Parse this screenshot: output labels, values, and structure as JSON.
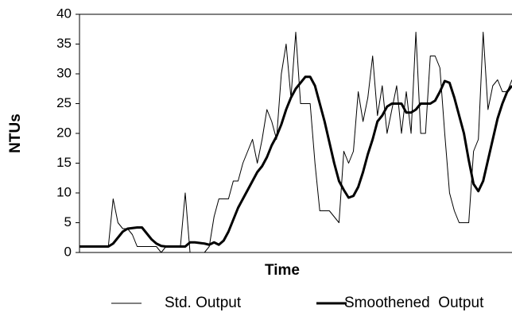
{
  "chart_data": {
    "type": "line",
    "x_label": "Time",
    "y_label": "NTUs",
    "categories": [
      null,
      null,
      null,
      null,
      null,
      null,
      null,
      null,
      null,
      null,
      null,
      null,
      null,
      null,
      null,
      null,
      null,
      null,
      null,
      null,
      null,
      null,
      null,
      null,
      null,
      null,
      null,
      null,
      null,
      null,
      null,
      null,
      null,
      null,
      null,
      null,
      null,
      null,
      null,
      null,
      null,
      null,
      null,
      null,
      null,
      null,
      null,
      null,
      null,
      null,
      null,
      null,
      null,
      null,
      null,
      null,
      null,
      null,
      null,
      null,
      null,
      null,
      null,
      null,
      null,
      null,
      null,
      null,
      null,
      null,
      null,
      null,
      null,
      null,
      null,
      null,
      null,
      null,
      null,
      null,
      null,
      null,
      null,
      null,
      null,
      null,
      null,
      null,
      null,
      null,
      null
    ],
    "series": [
      {
        "name": "Std. Output",
        "color": "#000000",
        "width": 1,
        "values": [
          1,
          1,
          1,
          1,
          1,
          1,
          1,
          9,
          5,
          4,
          4,
          3,
          1,
          1,
          1,
          1,
          1,
          0,
          1,
          1,
          1,
          1,
          10,
          0,
          0,
          0,
          0,
          1,
          6,
          9,
          9,
          9,
          12,
          12,
          15,
          17,
          19,
          15,
          19,
          24,
          22,
          19,
          30,
          35,
          26,
          37,
          25,
          25,
          25,
          15,
          7,
          7,
          7,
          6,
          5,
          17,
          15,
          17,
          27,
          22,
          26,
          33,
          23,
          28,
          20,
          24,
          28,
          20,
          27,
          20,
          37,
          20,
          20,
          33,
          33,
          31,
          20,
          10,
          7,
          5,
          5,
          5,
          17,
          19,
          37,
          24,
          28,
          29,
          27,
          27,
          29
        ]
      },
      {
        "name": "Smoothened  Output",
        "color": "#000000",
        "width": 3,
        "values": [
          1,
          1,
          1,
          1,
          1,
          1,
          1,
          1.5,
          2.5,
          3.5,
          4,
          4.1,
          4.2,
          4.2,
          3.2,
          2.2,
          1.5,
          1.1,
          1,
          1,
          1,
          1,
          1,
          1.7,
          1.7,
          1.6,
          1.5,
          1.3,
          1.7,
          1.3,
          2,
          3.5,
          5.5,
          7.5,
          9,
          10.5,
          12,
          13.5,
          14.5,
          16,
          18,
          19.5,
          21.5,
          24,
          26,
          27.5,
          28.5,
          29.5,
          29.5,
          28,
          25,
          22,
          18.5,
          15,
          12,
          10.5,
          9.2,
          9.5,
          11,
          13.5,
          16.5,
          19,
          22,
          23,
          24.5,
          25,
          25,
          25,
          23.5,
          23.5,
          24,
          25,
          25,
          25,
          25.5,
          27,
          28.8,
          28.5,
          26,
          23,
          20,
          15.5,
          11.5,
          10.3,
          12,
          15.5,
          19,
          22.5,
          25,
          27,
          28
        ]
      }
    ],
    "ylim": [
      0,
      40
    ],
    "yticks": [
      0,
      5,
      10,
      15,
      20,
      25,
      30,
      35,
      40
    ],
    "grid": false,
    "legend": "bottom"
  }
}
